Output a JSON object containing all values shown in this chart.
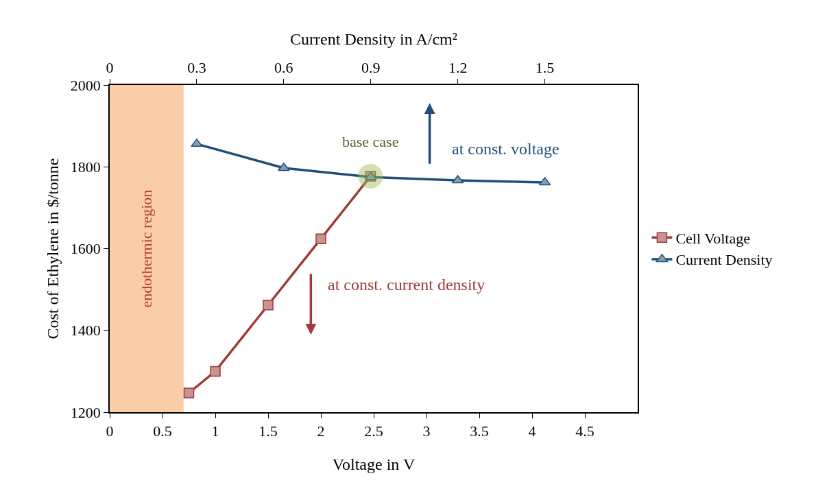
{
  "chart_data": {
    "type": "line",
    "xlabel": "Voltage in V",
    "x2label": "Current Density in A/cm²",
    "ylabel": "Cost of Ethylene in $/tonne",
    "series": [
      {
        "name": "Cell Voltage",
        "color": "#9e3a37",
        "marker": "square",
        "x": [
          0.75,
          1,
          1.5,
          2,
          2.47
        ],
        "values": [
          1247,
          1300,
          1462,
          1624,
          1777
        ]
      },
      {
        "name": "Current Density",
        "color": "#1f4e79",
        "marker": "triangle",
        "axis": "x2",
        "x": [
          0.3,
          0.6,
          0.9,
          1.2,
          1.5
        ],
        "values": [
          1856,
          1797,
          1775,
          1767,
          1762
        ]
      }
    ],
    "xlim": [
      0,
      5
    ],
    "xticks": [
      0,
      0.5,
      1,
      1.5,
      2,
      2.5,
      3,
      3.5,
      4,
      4.5
    ],
    "x2lim": [
      0,
      1.82
    ],
    "x2ticks": [
      0,
      0.3,
      0.6,
      0.9,
      1.2,
      1.5
    ],
    "ylim": [
      1200,
      2000
    ],
    "yticks": [
      1200,
      1400,
      1600,
      1800,
      2000
    ],
    "bands": [
      {
        "axis": "x",
        "from": 0,
        "to": 0.7,
        "label": "endothermic region",
        "color": "#f4a460"
      }
    ],
    "annotations": [
      {
        "text": "base case",
        "x": 2.47,
        "y": 1777
      },
      "at const. voltage",
      "at const. current density"
    ],
    "grid": false,
    "legend": "right",
    "line_style": "solid"
  }
}
